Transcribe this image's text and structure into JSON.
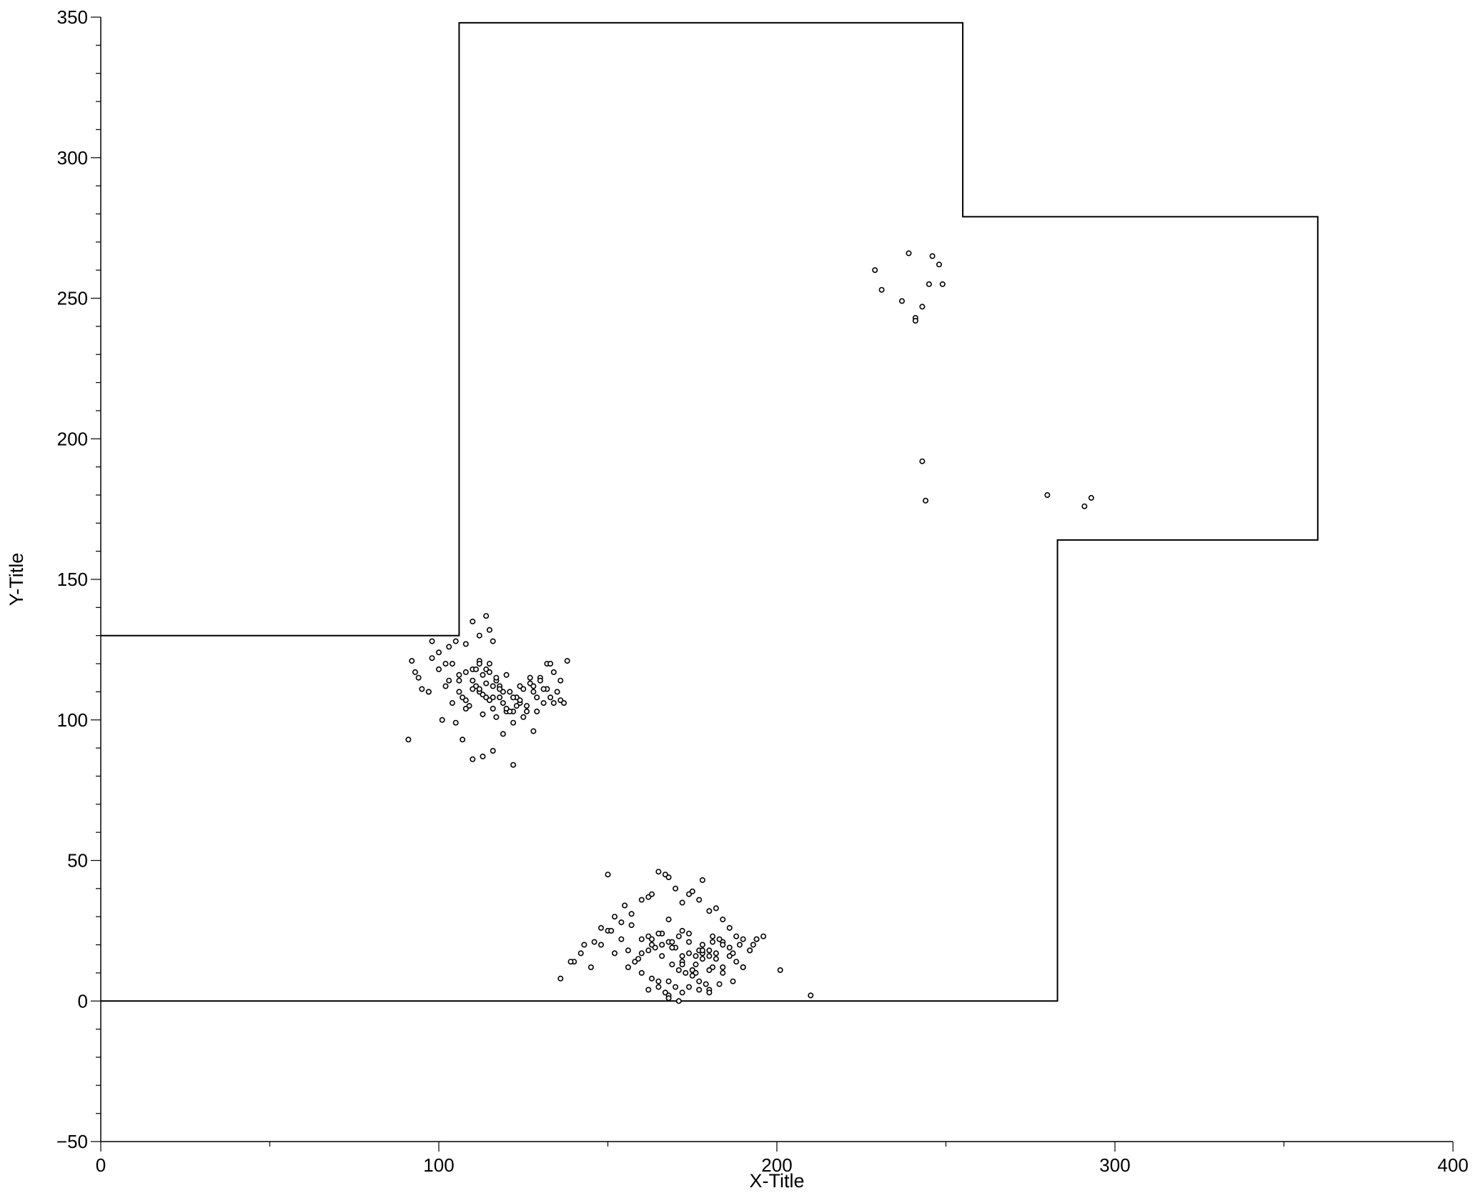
{
  "chart_data": {
    "type": "scatter",
    "title": "",
    "xlabel": "X-Title",
    "ylabel": "Y-Title",
    "xlim": [
      0,
      400
    ],
    "ylim": [
      -50,
      350
    ],
    "x_ticks": [
      0,
      100,
      200,
      300,
      400
    ],
    "y_ticks": [
      -50,
      0,
      50,
      100,
      150,
      200,
      250,
      300,
      350
    ],
    "x_tick_labels": [
      "0",
      "100",
      "200",
      "300",
      "400"
    ],
    "y_tick_labels": [
      "−50",
      "0",
      "50",
      "100",
      "150",
      "200",
      "250",
      "300",
      "350"
    ],
    "grid": false,
    "colors": {
      "line": "#000000",
      "marker_stroke": "#000000",
      "marker_fill": "#ffffff",
      "background": "#ffffff"
    },
    "boundary": {
      "x": [
        0,
        106,
        106,
        255,
        255,
        360,
        360,
        283,
        283,
        0
      ],
      "y": [
        130,
        130,
        348,
        348,
        279,
        279,
        164,
        164,
        0,
        0
      ]
    },
    "points": {
      "x": [
        98,
        98,
        102,
        105,
        108,
        110,
        112,
        114,
        115,
        116,
        92,
        93,
        95,
        97,
        100,
        102,
        104,
        106,
        108,
        110,
        112,
        114,
        116,
        118,
        120,
        122,
        124,
        126,
        128,
        130,
        132,
        134,
        136,
        138,
        100,
        103,
        106,
        108,
        110,
        111,
        112,
        113,
        114,
        115,
        116,
        117,
        118,
        119,
        120,
        121,
        122,
        123,
        124,
        125,
        126,
        127,
        128,
        129,
        130,
        131,
        132,
        133,
        134,
        135,
        136,
        137,
        105,
        107,
        109,
        111,
        113,
        115,
        117,
        119,
        121,
        123,
        125,
        127,
        129,
        131,
        133,
        103,
        104,
        106,
        108,
        110,
        112,
        114,
        116,
        118,
        120,
        122,
        124,
        101,
        107,
        110,
        113,
        116,
        119,
        122,
        128,
        91,
        94,
        97,
        112,
        113,
        115,
        117,
        150,
        152,
        155,
        157,
        160,
        162,
        163,
        165,
        167,
        168,
        170,
        172,
        174,
        175,
        177,
        178,
        180,
        182,
        184,
        186,
        188,
        190,
        192,
        194,
        196,
        140,
        143,
        146,
        148,
        150,
        152,
        154,
        156,
        158,
        160,
        162,
        164,
        166,
        168,
        170,
        172,
        174,
        176,
        178,
        180,
        182,
        184,
        186,
        188,
        190,
        192,
        194,
        136,
        139,
        142,
        145,
        148,
        151,
        154,
        157,
        160,
        163,
        166,
        169,
        172,
        175,
        178,
        181,
        184,
        187,
        190,
        193,
        156,
        159,
        162,
        165,
        168,
        171,
        174,
        177,
        180,
        183,
        186,
        189,
        160,
        163,
        166,
        169,
        172,
        175,
        178,
        181,
        184,
        187,
        163,
        166,
        169,
        172,
        175,
        178,
        181,
        165,
        168,
        171,
        174,
        177,
        180,
        183,
        167,
        170,
        173,
        176,
        179,
        182,
        168,
        172,
        176,
        180,
        184,
        201,
        210,
        162,
        165,
        168,
        171,
        174,
        177,
        180,
        229,
        231,
        237,
        239,
        243,
        246,
        248,
        249,
        245,
        241,
        241,
        243,
        244,
        280,
        291,
        293
      ],
      "y": [
        128,
        122,
        120,
        128,
        127,
        135,
        130,
        137,
        132,
        128,
        121,
        117,
        111,
        110,
        118,
        112,
        106,
        116,
        104,
        118,
        121,
        118,
        112,
        108,
        103,
        99,
        106,
        103,
        112,
        115,
        120,
        117,
        114,
        121,
        124,
        114,
        110,
        107,
        114,
        118,
        110,
        116,
        108,
        120,
        108,
        114,
        112,
        106,
        116,
        110,
        103,
        105,
        112,
        101,
        105,
        113,
        110,
        108,
        114,
        106,
        111,
        120,
        106,
        110,
        107,
        106,
        99,
        108,
        105,
        112,
        102,
        107,
        115,
        110,
        103,
        108,
        111,
        115,
        103,
        111,
        108,
        126,
        120,
        114,
        117,
        111,
        120,
        113,
        104,
        111,
        104,
        108,
        107,
        100,
        93,
        86,
        87,
        89,
        95,
        84,
        96,
        93,
        115,
        110,
        111,
        109,
        117,
        101,
        45,
        30,
        34,
        31,
        36,
        37,
        38,
        46,
        45,
        44,
        40,
        35,
        38,
        39,
        36,
        43,
        32,
        33,
        29,
        26,
        23,
        22,
        18,
        22,
        23,
        14,
        20,
        21,
        26,
        25,
        17,
        22,
        18,
        14,
        17,
        23,
        19,
        24,
        21,
        19,
        25,
        24,
        16,
        20,
        18,
        15,
        21,
        16,
        14,
        12,
        18,
        22,
        8,
        14,
        17,
        12,
        20,
        25,
        28,
        27,
        22,
        20,
        24,
        19,
        14,
        11,
        17,
        23,
        20,
        17,
        12,
        20,
        12,
        15,
        18,
        24,
        29,
        23,
        21,
        18,
        16,
        22,
        19,
        20,
        10,
        22,
        20,
        13,
        16,
        9,
        15,
        12,
        10,
        7,
        8,
        16,
        21,
        13,
        11,
        18,
        21,
        5,
        7,
        11,
        17,
        7,
        4,
        6,
        3,
        5,
        10,
        13,
        6,
        17,
        2,
        3,
        10,
        11,
        12,
        11,
        2,
        4,
        7,
        1,
        0,
        5,
        4,
        3,
        260,
        253,
        249,
        266,
        247,
        265,
        262,
        255,
        255,
        243,
        242,
        192,
        178,
        180,
        176,
        179
      ]
    }
  }
}
